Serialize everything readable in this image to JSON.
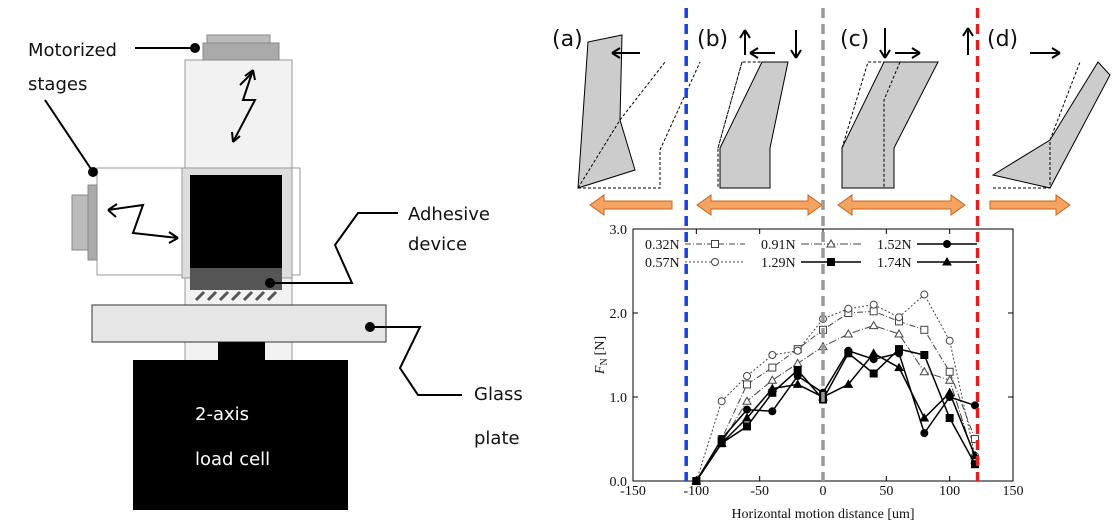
{
  "diagram": {
    "stages_label": [
      "Motorized",
      "stages"
    ],
    "adhesive_label": [
      "Adhesive",
      "device"
    ],
    "glass_label": [
      "Glass",
      "plate"
    ],
    "loadcell_label": [
      "2-axis",
      "load cell"
    ]
  },
  "panels": [
    "(a)",
    "(b)",
    "(c)",
    "(d)"
  ],
  "chart_data": {
    "type": "line",
    "xlabel": "Horizontal motion distance [um]",
    "ylabel": "F",
    "ylabel_sub": "N",
    "ylabel_unit": "[N]",
    "x": [
      -100,
      -80,
      -60,
      -40,
      -20,
      0,
      20,
      40,
      60,
      80,
      100,
      120
    ],
    "series": [
      {
        "name": "0.32N",
        "color": "#444444",
        "marker": "square",
        "filled": false,
        "dash": "6 2 1 2",
        "values": [
          0,
          0.5,
          1.15,
          1.35,
          1.57,
          1.8,
          2.0,
          2.02,
          1.9,
          1.8,
          1.3,
          0.5
        ]
      },
      {
        "name": "0.57N",
        "color": "#444444",
        "marker": "circle",
        "filled": false,
        "dash": "2 2",
        "values": [
          0,
          0.95,
          1.25,
          1.5,
          1.55,
          1.93,
          2.05,
          2.1,
          1.95,
          2.22,
          1.67,
          0.3
        ]
      },
      {
        "name": "0.91N",
        "color": "#444444",
        "marker": "triangle",
        "filled": false,
        "dash": "8 2 1 2",
        "values": [
          0,
          0.45,
          0.95,
          1.2,
          1.4,
          1.6,
          1.75,
          1.85,
          1.75,
          1.3,
          1.2,
          0.25
        ]
      },
      {
        "name": "1.29N",
        "color": "#000000",
        "marker": "square",
        "filled": true,
        "dash": "",
        "values": [
          0,
          0.45,
          0.65,
          1.05,
          1.32,
          0.97,
          1.52,
          1.28,
          1.57,
          1.5,
          0.75,
          0.2
        ]
      },
      {
        "name": "1.52N",
        "color": "#000000",
        "marker": "circle",
        "filled": true,
        "dash": "",
        "values": [
          0,
          0.5,
          0.85,
          0.83,
          1.25,
          1.05,
          1.55,
          1.45,
          1.52,
          0.57,
          1.0,
          0.9
        ]
      },
      {
        "name": "1.74N",
        "color": "#000000",
        "marker": "triangle",
        "filled": true,
        "dash": "",
        "values": [
          0,
          0.45,
          0.75,
          1.1,
          1.15,
          1.0,
          1.15,
          1.52,
          1.35,
          0.75,
          1.05,
          0.3
        ]
      }
    ],
    "xlim": [
      -150,
      150
    ],
    "xticks": [
      -150,
      -100,
      -50,
      0,
      50,
      100,
      150
    ],
    "ylim": [
      0,
      3
    ],
    "yticks": [
      {
        "value": 0,
        "label": "0.0"
      },
      {
        "value": 1,
        "label": "1.0"
      },
      {
        "value": 2,
        "label": "2.0"
      },
      {
        "value": 3,
        "label": "3.0"
      }
    ],
    "vlines": [
      {
        "x": -108,
        "color": "#1a3fe0"
      },
      {
        "x": 0,
        "color": "#999999"
      },
      {
        "x": 122,
        "color": "#e02020"
      }
    ]
  }
}
